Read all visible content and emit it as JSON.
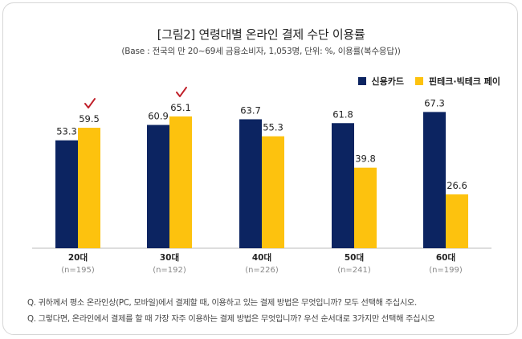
{
  "title": "[그림2] 연령대별 온라인 결제 수단 이용률",
  "subtitle": "(Base : 전국의 만 20~69세 금융소비자, 1,053명, 단위: %, 이용률(복수응답))",
  "colors": {
    "credit": "#0c2461",
    "fintech": "#fdc20e",
    "check": "#c0202a"
  },
  "chart_data": {
    "type": "bar",
    "categories": [
      "20대",
      "30대",
      "40대",
      "50대",
      "60대"
    ],
    "category_sublabels": [
      "(n=195)",
      "(n=192)",
      "(n=226)",
      "(n=241)",
      "(n=199)"
    ],
    "series": [
      {
        "name": "신용카드",
        "values": [
          53.3,
          60.9,
          63.7,
          61.8,
          67.3
        ]
      },
      {
        "name": "핀테크·빅테크 페이",
        "values": [
          59.5,
          65.1,
          55.3,
          39.8,
          26.6
        ]
      }
    ],
    "ylim": [
      0,
      75
    ],
    "grid": false,
    "legend_position": "top-right",
    "checkmarks": [
      0,
      1
    ]
  },
  "notes": [
    "Q. 귀하께서 평소 온라인상(PC, 모바일)에서 결제할 때, 이용하고 있는 결제 방법은 무엇입니까? 모두 선택해 주십시오.",
    "Q. 그렇다면, 온라인에서 결제를 할 때 가장 자주 이용하는 결제 방법은 무엇입니까? 우선 순서대로 3가지만 선택해 주십시오"
  ]
}
